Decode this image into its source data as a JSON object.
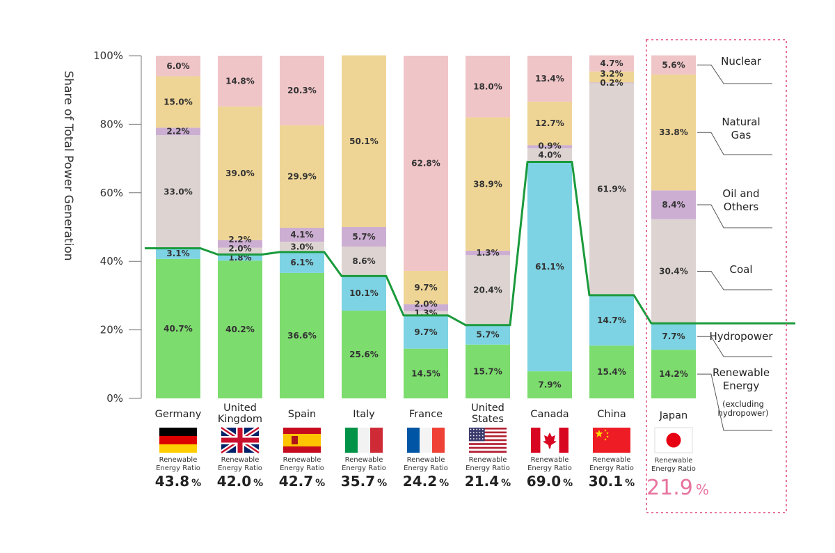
{
  "chart_data": {
    "type": "bar",
    "stacked": true,
    "ylabel": "Share of Total Power Generation",
    "ylim": [
      0,
      100
    ],
    "yticks": [
      "0%",
      "20%",
      "40%",
      "60%",
      "80%",
      "100%"
    ],
    "categories": [
      "Germany",
      "United Kingdom",
      "Spain",
      "Italy",
      "France",
      "United States",
      "Canada",
      "China",
      "Japan"
    ],
    "category_lines": [
      [
        "Germany"
      ],
      [
        "United",
        "Kingdom"
      ],
      [
        "Spain"
      ],
      [
        "Italy"
      ],
      [
        "France"
      ],
      [
        "United",
        "States"
      ],
      [
        "Canada"
      ],
      [
        "China"
      ],
      [
        "Japan"
      ]
    ],
    "series": [
      {
        "name": "Renewable Energy",
        "color": "#7ddc6e",
        "values": [
          40.7,
          40.2,
          36.6,
          25.6,
          14.5,
          15.7,
          7.9,
          15.4,
          14.2
        ]
      },
      {
        "name": "Hydropower",
        "color": "#7dd3e3",
        "values": [
          3.1,
          1.8,
          6.1,
          10.1,
          9.7,
          5.7,
          61.1,
          14.7,
          7.7
        ]
      },
      {
        "name": "Coal",
        "color": "#ddd4d2",
        "values": [
          33.0,
          2.0,
          3.0,
          8.6,
          1.3,
          20.4,
          4.0,
          61.9,
          30.4
        ]
      },
      {
        "name": "Oil and Others",
        "color": "#cdaed3",
        "values": [
          2.2,
          2.2,
          4.1,
          5.7,
          2.0,
          1.3,
          0.9,
          0.2,
          8.4
        ]
      },
      {
        "name": "Natural Gas",
        "color": "#efd595",
        "values": [
          15.0,
          39.0,
          29.9,
          50.1,
          9.7,
          38.9,
          12.7,
          3.2,
          33.8
        ]
      },
      {
        "name": "Nuclear",
        "color": "#f0c5c8",
        "values": [
          6.0,
          14.8,
          20.3,
          0,
          62.8,
          18.0,
          13.4,
          4.7,
          5.6
        ]
      }
    ],
    "value_suffix": "%",
    "renewable_ratio_label": [
      "Renewable",
      "Energy Ratio"
    ],
    "renewable_ratio": [
      43.8,
      42.0,
      42.7,
      35.7,
      24.2,
      21.4,
      69.0,
      30.1,
      21.9
    ],
    "ratio_line_color": "#1a9a3c",
    "highlight": {
      "category": "Japan",
      "color": "#e8739f"
    },
    "legend": [
      {
        "lines": [
          "Nuclear"
        ]
      },
      {
        "lines": [
          "Natural",
          "Gas"
        ]
      },
      {
        "lines": [
          "Oil and",
          "Others"
        ]
      },
      {
        "lines": [
          "Coal"
        ]
      },
      {
        "lines": [
          "Hydropower"
        ]
      },
      {
        "lines": [
          "Renewable",
          "Energy"
        ],
        "note": [
          "(excluding",
          "hydropower)"
        ]
      }
    ],
    "legend_placement": "right",
    "flags": [
      "germany-flag",
      "uk-flag",
      "spain-flag",
      "italy-flag",
      "france-flag",
      "usa-flag",
      "canada-flag",
      "china-flag",
      "japan-flag"
    ]
  }
}
